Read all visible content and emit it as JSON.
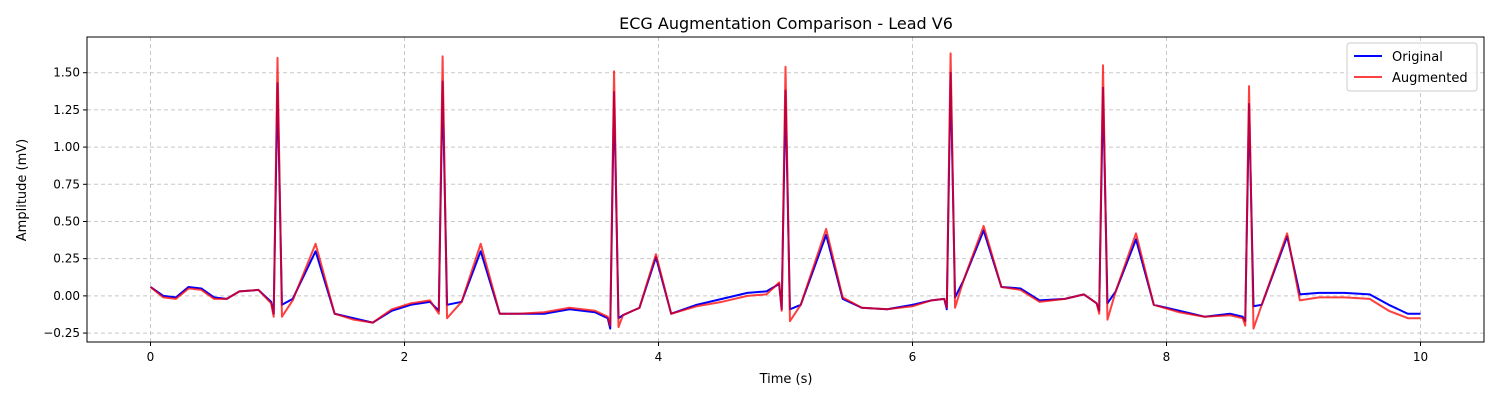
{
  "chart_data": {
    "type": "line",
    "title": "ECG Augmentation Comparison - Lead V6",
    "xlabel": "Time (s)",
    "ylabel": "Amplitude (mV)",
    "xlim": [
      -0.5,
      10.5
    ],
    "ylim": [
      -0.31,
      1.74
    ],
    "grid": true,
    "legend_position": "top-right",
    "x_ticks": [
      0,
      2,
      4,
      6,
      8,
      10
    ],
    "x_tick_labels": [
      "0",
      "2",
      "4",
      "6",
      "8",
      "10"
    ],
    "y_ticks": [
      -0.25,
      0.0,
      0.25,
      0.5,
      0.75,
      1.0,
      1.25,
      1.5
    ],
    "y_tick_labels": [
      "−0.25",
      "0.00",
      "0.25",
      "0.50",
      "0.75",
      "1.00",
      "1.25",
      "1.50"
    ],
    "r_peaks": [
      1.0,
      2.3,
      3.65,
      5.0,
      6.3,
      7.5,
      8.65
    ],
    "series": [
      {
        "name": "Original",
        "color": "#0000ff",
        "x": [
          0.0,
          0.1,
          0.2,
          0.3,
          0.4,
          0.5,
          0.6,
          0.7,
          0.85,
          0.95,
          1.12,
          1.3,
          1.45,
          1.6,
          1.75,
          1.9,
          2.05,
          2.2,
          2.45,
          2.6,
          2.75,
          2.9,
          3.1,
          3.3,
          3.5,
          3.6,
          3.72,
          3.85,
          3.98,
          4.1,
          4.3,
          4.5,
          4.7,
          4.85,
          4.95,
          5.12,
          5.32,
          5.45,
          5.6,
          5.8,
          6.0,
          6.15,
          6.25,
          6.4,
          6.56,
          6.7,
          6.85,
          7.0,
          7.2,
          7.35,
          7.45,
          7.6,
          7.76,
          7.9,
          8.1,
          8.3,
          8.5,
          8.6,
          8.75,
          8.95,
          9.05,
          9.2,
          9.4,
          9.6,
          9.75,
          9.9,
          10.0
        ],
        "y": [
          0.06,
          0.0,
          -0.01,
          0.06,
          0.05,
          -0.01,
          -0.02,
          0.03,
          0.04,
          -0.04,
          -0.02,
          0.3,
          -0.12,
          -0.15,
          -0.18,
          -0.1,
          -0.06,
          -0.04,
          -0.04,
          0.3,
          -0.12,
          -0.12,
          -0.12,
          -0.09,
          -0.11,
          -0.15,
          -0.13,
          -0.08,
          0.26,
          -0.12,
          -0.06,
          -0.02,
          0.02,
          0.03,
          0.08,
          -0.06,
          0.41,
          -0.02,
          -0.08,
          -0.09,
          -0.06,
          -0.03,
          -0.02,
          0.1,
          0.44,
          0.06,
          0.05,
          -0.03,
          -0.02,
          0.01,
          -0.05,
          0.03,
          0.38,
          -0.06,
          -0.1,
          -0.14,
          -0.12,
          -0.14,
          -0.06,
          0.4,
          0.01,
          0.02,
          0.02,
          0.01,
          -0.06,
          -0.12,
          -0.12
        ]
      },
      {
        "name": "Augmented",
        "color": "#ff0000",
        "x": [
          0.0,
          0.1,
          0.2,
          0.3,
          0.4,
          0.5,
          0.6,
          0.7,
          0.85,
          0.95,
          1.12,
          1.3,
          1.45,
          1.6,
          1.75,
          1.9,
          2.05,
          2.2,
          2.45,
          2.6,
          2.75,
          2.9,
          3.1,
          3.3,
          3.5,
          3.6,
          3.72,
          3.85,
          3.98,
          4.1,
          4.3,
          4.5,
          4.7,
          4.85,
          4.95,
          5.12,
          5.32,
          5.45,
          5.6,
          5.8,
          6.0,
          6.15,
          6.25,
          6.4,
          6.56,
          6.7,
          6.85,
          7.0,
          7.2,
          7.35,
          7.45,
          7.6,
          7.76,
          7.9,
          8.1,
          8.3,
          8.5,
          8.6,
          8.75,
          8.95,
          9.05,
          9.2,
          9.4,
          9.6,
          9.75,
          9.9,
          10.0
        ],
        "y": [
          0.06,
          -0.01,
          -0.02,
          0.05,
          0.04,
          -0.02,
          -0.02,
          0.03,
          0.04,
          -0.05,
          -0.03,
          0.35,
          -0.12,
          -0.16,
          -0.18,
          -0.09,
          -0.05,
          -0.03,
          -0.04,
          0.35,
          -0.12,
          -0.12,
          -0.11,
          -0.08,
          -0.1,
          -0.14,
          -0.13,
          -0.08,
          0.28,
          -0.12,
          -0.07,
          -0.04,
          0.0,
          0.01,
          0.09,
          -0.06,
          0.45,
          -0.01,
          -0.08,
          -0.09,
          -0.07,
          -0.03,
          -0.02,
          0.1,
          0.47,
          0.06,
          0.04,
          -0.04,
          -0.02,
          0.01,
          -0.05,
          0.03,
          0.42,
          -0.06,
          -0.11,
          -0.14,
          -0.13,
          -0.15,
          -0.06,
          0.42,
          -0.03,
          -0.01,
          -0.01,
          -0.02,
          -0.1,
          -0.15,
          -0.15
        ]
      }
    ],
    "peak_shapes": [
      {
        "series": "Original",
        "q": [
          -0.12,
          -0.1,
          -0.22,
          -0.09,
          -0.09,
          -0.1,
          -0.17
        ],
        "r": [
          1.43,
          1.44,
          1.37,
          1.38,
          1.5,
          1.4,
          1.29
        ],
        "s": [
          -0.06,
          -0.06,
          -0.15,
          -0.09,
          -0.01,
          -0.05,
          -0.07
        ]
      },
      {
        "series": "Augmented",
        "q": [
          -0.14,
          -0.12,
          -0.2,
          -0.1,
          -0.08,
          -0.12,
          -0.2
        ],
        "r": [
          1.6,
          1.61,
          1.51,
          1.54,
          1.63,
          1.55,
          1.41
        ],
        "s": [
          -0.14,
          -0.15,
          -0.21,
          -0.17,
          -0.08,
          -0.16,
          -0.22
        ]
      }
    ]
  }
}
